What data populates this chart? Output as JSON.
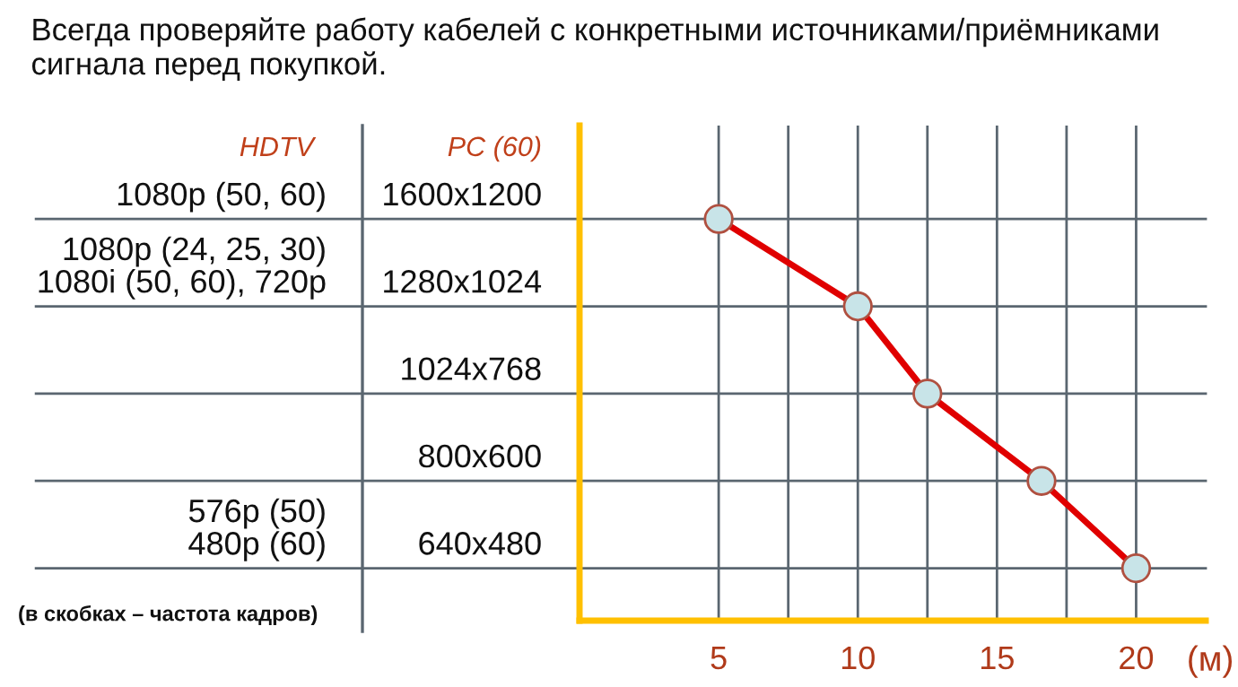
{
  "chart_data": {
    "type": "line",
    "orientation": "horizontal",
    "title": "Всегда проверяйте работу кабелей с конкретными источниками/приёмниками сигнала перед покупкой.",
    "categories": [
      "1600x1200",
      "1280x1024",
      "1024x768",
      "800x600",
      "640x480"
    ],
    "y2_categories": [
      "1080p (50, 60)",
      "1080p (24, 25, 30)\n1080i (50, 60), 720p",
      null,
      null,
      "576p (50)\n480p (60)"
    ],
    "series": [
      {
        "color": "#e00000",
        "values": [
          5,
          10,
          12.5,
          16.6,
          20
        ]
      }
    ],
    "xlabel": "(м)",
    "xlim": [
      0,
      22.5
    ],
    "xticks": [
      5,
      {
        "value": 7.5,
        "label": null
      },
      10,
      {
        "value": 12.5,
        "label": null
      },
      15,
      {
        "value": 17.5,
        "label": null
      },
      20
    ],
    "annotations": [
      "HDTV",
      "PC (60)",
      "(в скобках – частота кадров)"
    ],
    "grid": true,
    "marker": "circle",
    "line_style": "solid"
  }
}
